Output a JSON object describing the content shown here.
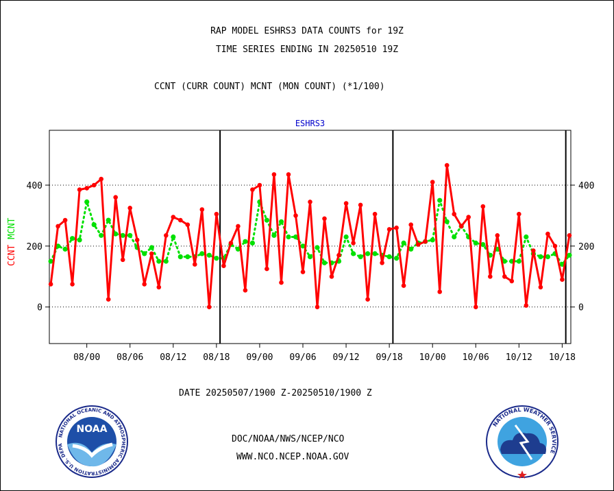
{
  "header": {
    "title_line1": "RAP MODEL ESHRS3 DATA COUNTS for 19Z",
    "title_line2": "TIME SERIES ENDING IN 20250510 19Z",
    "subtitle": "CCNT (CURR COUNT) MCNT (MON COUNT) (*1/100)"
  },
  "footer": {
    "date_range": "DATE 20250507/1900 Z-20250510/1900 Z",
    "org_path": "DOC/NOAA/NWS/NCEP/NCO",
    "website": "WWW.NCO.NCEP.NOAA.GOV"
  },
  "logos": {
    "noaa_label": "NOAA",
    "noaa_ring_text": "NATIONAL OCEANIC AND ATMOSPHERIC ADMINISTRATION U.S. DEPARTMENT OF COMMERCE",
    "nws_ring_text": "NATIONAL WEATHER SERVICE"
  },
  "colors": {
    "ccnt": "#ff0000",
    "mcnt": "#00e000",
    "plot_title": "#0000cc",
    "footer_link": "#0000cc",
    "date_text": "#ff0000"
  },
  "chart_data": {
    "type": "line",
    "title": "ESHRS3",
    "ylabel_left": [
      "CCNT",
      "MCNT"
    ],
    "ylim": [
      -120,
      580
    ],
    "yticks": [
      0,
      200,
      400
    ],
    "x_tick_labels": [
      "08/00",
      "08/06",
      "08/12",
      "08/18",
      "09/00",
      "09/06",
      "09/12",
      "09/18",
      "10/00",
      "10/06",
      "10/12",
      "10/18"
    ],
    "x_tick_index": [
      5,
      11,
      17,
      23,
      29,
      35,
      41,
      47,
      53,
      59,
      65,
      71
    ],
    "day_dividers_index": [
      23.5,
      47.5,
      71.5
    ],
    "grid": "horizontal dotted",
    "series": [
      {
        "name": "CCNT",
        "values": [
          75,
          265,
          285,
          75,
          385,
          390,
          400,
          420,
          25,
          360,
          155,
          325,
          220,
          75,
          175,
          65,
          235,
          295,
          285,
          270,
          140,
          320,
          0,
          305,
          135,
          210,
          265,
          55,
          385,
          400,
          125,
          435,
          80,
          435,
          300,
          115,
          345,
          0,
          290,
          100,
          170,
          340,
          210,
          335,
          25,
          305,
          145,
          255,
          260,
          70,
          270,
          205,
          215,
          410,
          50,
          465,
          305,
          265,
          295,
          0,
          330,
          100,
          235,
          100,
          85,
          305,
          5,
          185,
          65,
          240,
          200,
          90,
          235
        ]
      },
      {
        "name": "MCNT",
        "values": [
          150,
          200,
          190,
          225,
          220,
          345,
          270,
          235,
          285,
          240,
          235,
          235,
          195,
          175,
          195,
          150,
          150,
          230,
          165,
          165,
          165,
          175,
          170,
          160,
          160,
          205,
          190,
          215,
          210,
          345,
          285,
          235,
          280,
          230,
          230,
          200,
          165,
          195,
          145,
          145,
          150,
          230,
          175,
          165,
          175,
          175,
          170,
          165,
          160,
          210,
          190,
          210,
          215,
          220,
          350,
          280,
          230,
          265,
          230,
          210,
          205,
          170,
          190,
          150,
          150,
          150,
          230,
          175,
          165,
          165,
          175,
          140,
          170
        ]
      }
    ]
  }
}
